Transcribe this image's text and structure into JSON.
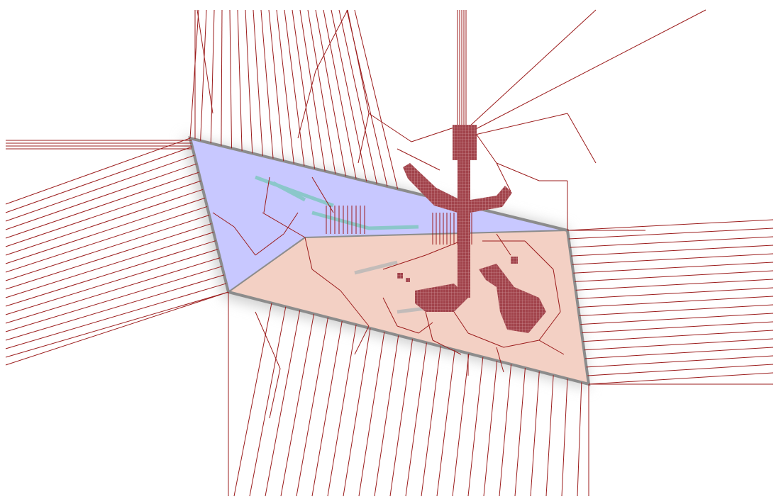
{
  "colors": {
    "background": "#ffffff",
    "line": "#9b1c1c",
    "pixel_fill": "#a1434b",
    "pixel_shade": "#c9a6aa",
    "upper_face": "#c8c8ff",
    "lower_face": "#f3d0c4",
    "border": "#8c8c8c",
    "shadow": "#cfcfcf",
    "cyan_streak": "#7cc7bd"
  },
  "regions": [
    {
      "name": "upper-triangle",
      "fill_key": "upper_face"
    },
    {
      "name": "lower-trapezoid",
      "fill_key": "lower_face"
    }
  ]
}
